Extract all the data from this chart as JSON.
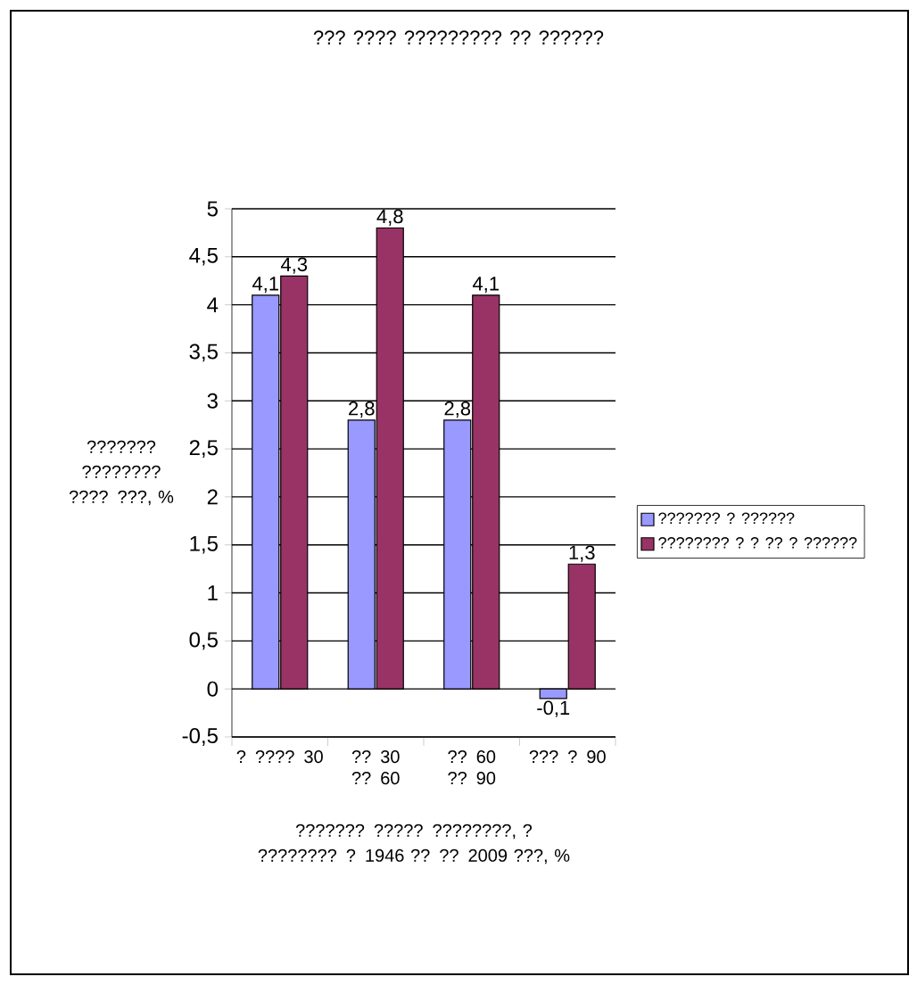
{
  "chart_data": {
    "type": "bar",
    "title": "??? ???? ????????? ?? ??????",
    "xlabel": "??????? ????? ????????, ? ???????? ? 1946 ?? ?? 2009 ???, %",
    "ylabel": "??????? ???????? ???? ???, %",
    "categories": [
      "? ???? 30",
      "?? 30 ?? 60",
      "?? 60 ?? 90",
      "??? ? 90"
    ],
    "series": [
      {
        "name": "??????? ? ??????",
        "color": "#9999ff",
        "values": [
          4.1,
          2.8,
          2.8,
          -0.1
        ],
        "value_labels": [
          "4,1",
          "2,8",
          "2,8",
          "-0,1"
        ]
      },
      {
        "name": "???????? ? ? ?? ? ??????",
        "color": "#993366",
        "values": [
          4.3,
          4.8,
          4.1,
          1.3
        ],
        "value_labels": [
          "4,3",
          "4,8",
          "4,1",
          "1,3"
        ]
      }
    ],
    "ylim": [
      -0.5,
      5
    ],
    "yticks": [
      {
        "value": -0.5,
        "label": "-0,5"
      },
      0,
      {
        "value": 0.5,
        "label": "0,5"
      },
      1,
      {
        "value": 1.5,
        "label": "1,5"
      },
      2,
      {
        "value": 2.5,
        "label": "2,5"
      },
      3,
      {
        "value": 3.5,
        "label": "3,5"
      },
      4,
      {
        "value": 4.5,
        "label": "4,5"
      },
      5
    ],
    "grid": "y",
    "legend": "right"
  }
}
